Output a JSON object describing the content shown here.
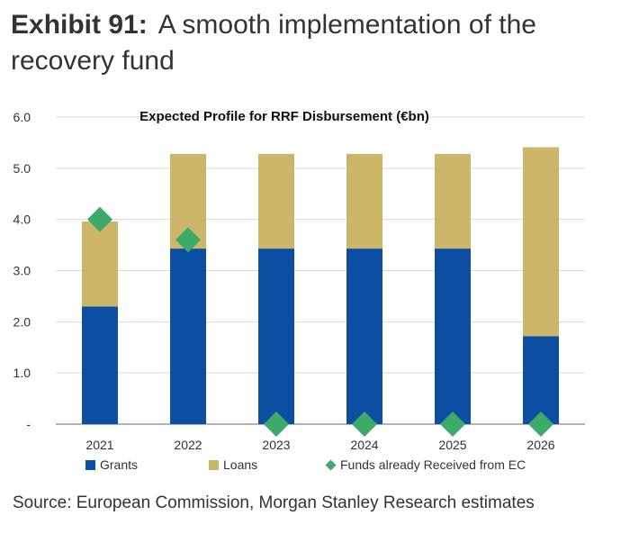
{
  "exhibit": {
    "label": "Exhibit 91:",
    "title": "A smooth implementation of the recovery fund"
  },
  "source": "Source: European Commission, Morgan Stanley Research estimates",
  "colors": {
    "grants": "#0B4EA2",
    "loans": "#CDB56A",
    "funds_received": "#3DAA6A",
    "grid": "#D9D9D9",
    "axis": "#666666"
  },
  "chart_data": {
    "type": "bar",
    "stacked": true,
    "title": "Expected Profile for RRF Disbursement (€bn)",
    "xlabel": "",
    "ylabel": "",
    "categories": [
      "2021",
      "2022",
      "2023",
      "2024",
      "2025",
      "2026"
    ],
    "ylim": [
      0,
      6
    ],
    "yticks": [
      0,
      1,
      2,
      3,
      4,
      5,
      6
    ],
    "ytick_labels": [
      "-",
      "1.0",
      "2.0",
      "3.0",
      "4.0",
      "5.0",
      "6.0"
    ],
    "grid": true,
    "legend_position": "bottom",
    "series": [
      {
        "name": "Grants",
        "kind": "bar",
        "color": "#0B4EA2",
        "values": [
          2.3,
          3.43,
          3.43,
          3.43,
          3.43,
          1.72
        ]
      },
      {
        "name": "Loans",
        "kind": "bar",
        "color": "#CDB56A",
        "values": [
          1.66,
          1.85,
          1.85,
          1.85,
          1.85,
          3.69
        ]
      },
      {
        "name": "Funds already Received from EC",
        "kind": "marker",
        "color": "#3DAA6A",
        "values": [
          4.0,
          3.6,
          0,
          0,
          0,
          0
        ]
      }
    ]
  }
}
